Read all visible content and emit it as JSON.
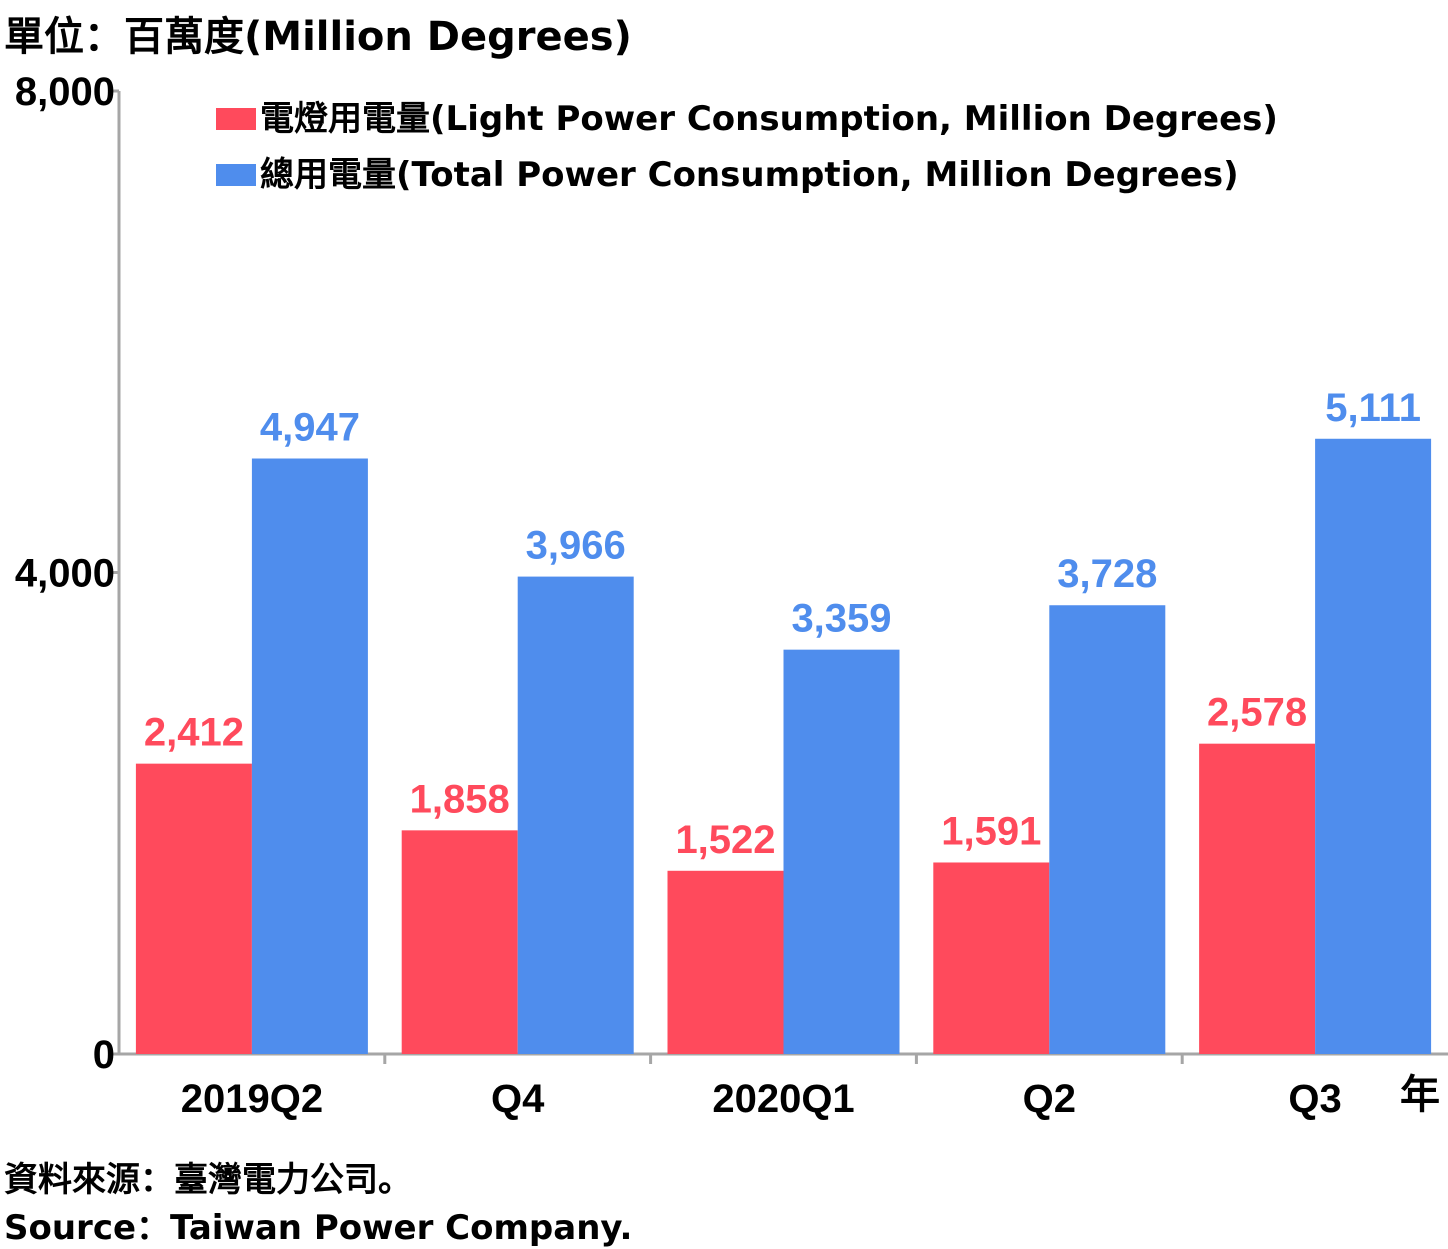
{
  "header": {
    "unit_label": "單位：百萬度(Million Degrees)"
  },
  "footer": {
    "source_zh": "資料來源：臺灣電力公司。",
    "source_en": "Source：Taiwan Power Company."
  },
  "chart_data": {
    "type": "bar",
    "categories": [
      "2019Q2",
      "Q4",
      "2020Q1",
      "Q2",
      "Q3"
    ],
    "x_unit_label": "年",
    "series": [
      {
        "name": "電燈用電量(Light Power Consumption, Million Degrees)",
        "color": "#ff4a5c",
        "values": [
          2412,
          1858,
          1522,
          1591,
          2578
        ]
      },
      {
        "name": "總用電量(Total Power Consumption, Million Degrees)",
        "color": "#4f8ded",
        "values": [
          4947,
          3966,
          3359,
          3728,
          5111
        ]
      }
    ],
    "ylim": [
      0,
      8000
    ],
    "yticks": [
      0,
      4000,
      8000
    ],
    "ytick_labels": [
      "0",
      "4,000",
      "8,000"
    ],
    "data_labels": [
      [
        "2,412",
        "1,858",
        "1,522",
        "1,591",
        "2,578"
      ],
      [
        "4,947",
        "3,966",
        "3,359",
        "3,728",
        "5,111"
      ]
    ],
    "legend_position": "top",
    "grid": false
  }
}
